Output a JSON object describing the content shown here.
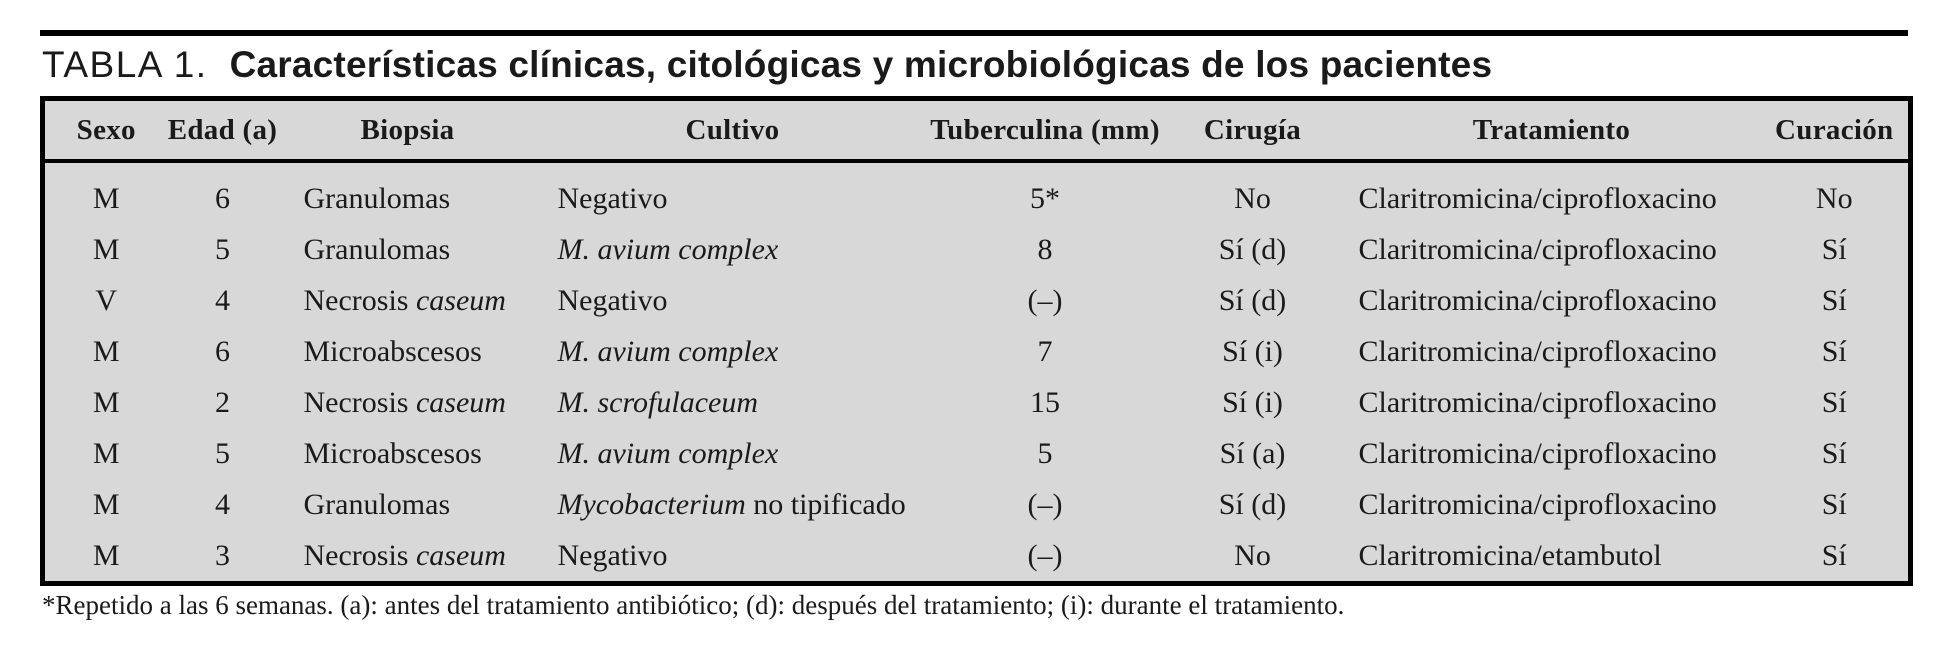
{
  "caption": {
    "label": "TABLA 1.",
    "title": "Características clínicas, citológicas y microbiológicas de los pacientes"
  },
  "table": {
    "columns": [
      {
        "key": "sexo",
        "label": "Sexo",
        "align": "center"
      },
      {
        "key": "edad",
        "label": "Edad (a)",
        "align": "center"
      },
      {
        "key": "biopsia",
        "label": "Biopsia",
        "align": "left"
      },
      {
        "key": "cultivo",
        "label": "Cultivo",
        "align": "left"
      },
      {
        "key": "tuberculina",
        "label": "Tuberculina (mm)",
        "align": "center"
      },
      {
        "key": "cirugia",
        "label": "Cirugía",
        "align": "center"
      },
      {
        "key": "tratamiento",
        "label": "Tratamiento",
        "align": "left"
      },
      {
        "key": "curacion",
        "label": "Curación",
        "align": "center"
      }
    ],
    "rows": [
      {
        "sexo": "M",
        "edad": "6",
        "biopsia": [
          {
            "t": "Granulomas"
          }
        ],
        "cultivo": [
          {
            "t": "Negativo"
          }
        ],
        "tuberculina": "5*",
        "cirugia": "No",
        "tratamiento": "Claritromicina/ciprofloxacino",
        "curacion": "No"
      },
      {
        "sexo": "M",
        "edad": "5",
        "biopsia": [
          {
            "t": "Granulomas"
          }
        ],
        "cultivo": [
          {
            "t": "M. avium complex",
            "i": true
          }
        ],
        "tuberculina": "8",
        "cirugia": "Sí (d)",
        "tratamiento": "Claritromicina/ciprofloxacino",
        "curacion": "Sí"
      },
      {
        "sexo": "V",
        "edad": "4",
        "biopsia": [
          {
            "t": "Necrosis "
          },
          {
            "t": "caseum",
            "i": true
          }
        ],
        "cultivo": [
          {
            "t": "Negativo"
          }
        ],
        "tuberculina": "(–)",
        "cirugia": "Sí (d)",
        "tratamiento": "Claritromicina/ciprofloxacino",
        "curacion": "Sí"
      },
      {
        "sexo": "M",
        "edad": "6",
        "biopsia": [
          {
            "t": "Microabscesos"
          }
        ],
        "cultivo": [
          {
            "t": "M. avium complex",
            "i": true
          }
        ],
        "tuberculina": "7",
        "cirugia": "Sí (i)",
        "tratamiento": "Claritromicina/ciprofloxacino",
        "curacion": "Sí"
      },
      {
        "sexo": "M",
        "edad": "2",
        "biopsia": [
          {
            "t": "Necrosis "
          },
          {
            "t": "caseum",
            "i": true
          }
        ],
        "cultivo": [
          {
            "t": "M. scrofulaceum",
            "i": true
          }
        ],
        "tuberculina": "15",
        "cirugia": "Sí (i)",
        "tratamiento": "Claritromicina/ciprofloxacino",
        "curacion": "Sí"
      },
      {
        "sexo": "M",
        "edad": "5",
        "biopsia": [
          {
            "t": "Microabscesos"
          }
        ],
        "cultivo": [
          {
            "t": "M. avium complex",
            "i": true
          }
        ],
        "tuberculina": "5",
        "cirugia": "Sí (a)",
        "tratamiento": "Claritromicina/ciprofloxacino",
        "curacion": "Sí"
      },
      {
        "sexo": "M",
        "edad": "4",
        "biopsia": [
          {
            "t": "Granulomas"
          }
        ],
        "cultivo": [
          {
            "t": "Mycobacterium",
            "i": true
          },
          {
            "t": " no tipificado"
          }
        ],
        "tuberculina": "(–)",
        "cirugia": "Sí (d)",
        "tratamiento": "Claritromicina/ciprofloxacino",
        "curacion": "Sí"
      },
      {
        "sexo": "M",
        "edad": "3",
        "biopsia": [
          {
            "t": "Necrosis "
          },
          {
            "t": "caseum",
            "i": true
          }
        ],
        "cultivo": [
          {
            "t": "Negativo"
          }
        ],
        "tuberculina": "(–)",
        "cirugia": "No",
        "tratamiento": "Claritromicina/etambutol",
        "curacion": "Sí"
      }
    ]
  },
  "footnote": "*Repetido a las 6 semanas. (a): antes del tratamiento antibiótico; (d): después del tratamiento; (i): durante el tratamiento.",
  "colors": {
    "table_background": "#d8d8d8",
    "border": "#000000",
    "text": "#1a1a1a",
    "page_background": "#ffffff"
  }
}
